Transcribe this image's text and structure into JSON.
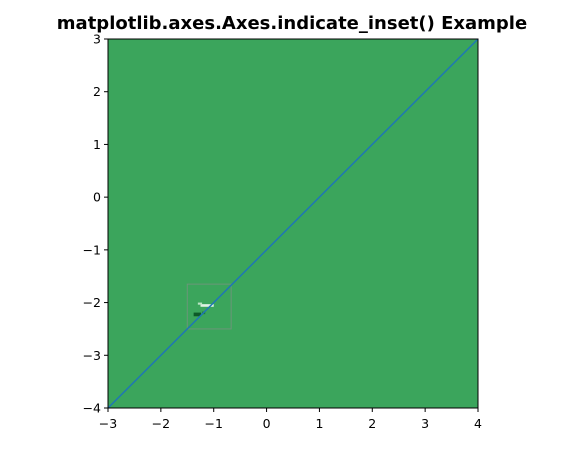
{
  "chart_data": {
    "type": "line",
    "title": "matplotlib.axes.Axes.indicate_inset() Example",
    "xlabel": "",
    "ylabel": "",
    "xlim": [
      -3,
      4
    ],
    "ylim": [
      -4,
      3
    ],
    "x_ticks": [
      -3,
      -2,
      -1,
      0,
      1,
      2,
      3,
      4
    ],
    "y_ticks": [
      -4,
      -3,
      -2,
      -1,
      0,
      1,
      2,
      3
    ],
    "x_tick_labels": [
      "−3",
      "−2",
      "−1",
      "0",
      "1",
      "2",
      "3",
      "4"
    ],
    "y_tick_labels": [
      "−4",
      "−3",
      "−2",
      "−1",
      "0",
      "1",
      "2",
      "3"
    ],
    "grid": false,
    "legend": "none",
    "background_image": {
      "kind": "imshow",
      "fill_color": "#3ba55c",
      "features": [
        {
          "x": -1.25,
          "y": -2.08,
          "w": 0.25,
          "h": 0.05,
          "color": "#dff2e4"
        },
        {
          "x": -1.3,
          "y": -2.04,
          "w": 0.08,
          "h": 0.04,
          "color": "#b9e4c3"
        },
        {
          "x": -1.38,
          "y": -2.26,
          "w": 0.14,
          "h": 0.07,
          "color": "#0d5a28"
        },
        {
          "x": -1.22,
          "y": -2.22,
          "w": 0.06,
          "h": 0.05,
          "color": "#1f7a3d"
        }
      ]
    },
    "series": [
      {
        "x": [
          -3,
          4
        ],
        "y": [
          -4,
          3
        ],
        "color": "#1f77b4"
      }
    ],
    "inset_indicator": {
      "x0": -1.5,
      "x1": -0.67,
      "y0": -2.5,
      "y1": -1.65,
      "color": "#8c8c8c"
    }
  }
}
